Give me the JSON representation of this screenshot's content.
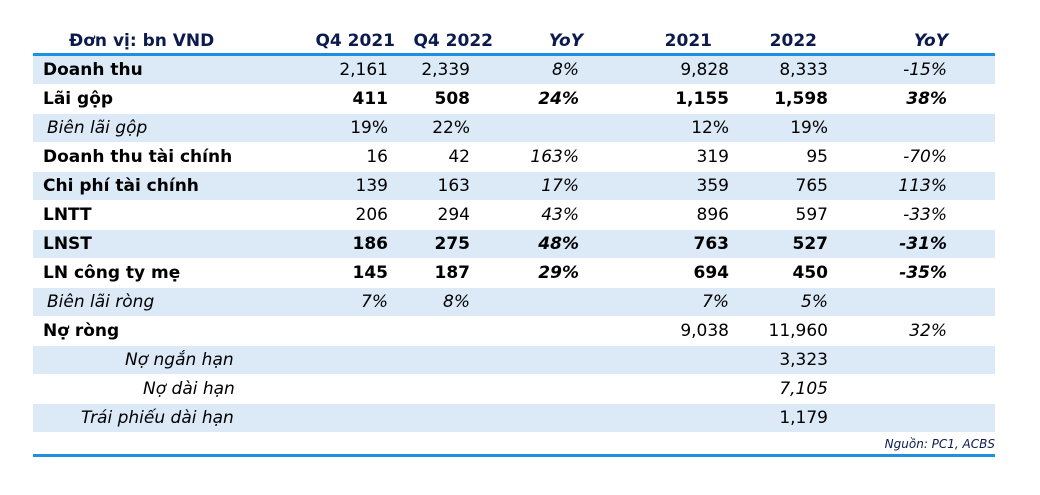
{
  "header": [
    "Đơn vị: bn VND",
    "Q4 2021",
    "Q4 2022",
    "YoY",
    "2021",
    "2022",
    "YoY"
  ],
  "rows": [
    {
      "label": "Doanh thu",
      "cells": [
        "2,161",
        "2,339",
        "8%",
        "9,828",
        "8,333",
        "-15%"
      ]
    },
    {
      "label": "Lãi gộp",
      "cells": [
        "411",
        "508",
        "24%",
        "1,155",
        "1,598",
        "38%"
      ]
    },
    {
      "label": "Biên lãi gộp",
      "cells": [
        "19%",
        "22%",
        "",
        "12%",
        "19%",
        ""
      ]
    },
    {
      "label": "Doanh thu tài chính",
      "cells": [
        "16",
        "42",
        "163%",
        "319",
        "95",
        "-70%"
      ]
    },
    {
      "label": "Chi phí tài chính",
      "cells": [
        "139",
        "163",
        "17%",
        "359",
        "765",
        "113%"
      ]
    },
    {
      "label": "LNTT",
      "cells": [
        "206",
        "294",
        "43%",
        "896",
        "597",
        "-33%"
      ]
    },
    {
      "label": "LNST",
      "cells": [
        "186",
        "275",
        "48%",
        "763",
        "527",
        "-31%"
      ]
    },
    {
      "label": "LN công ty mẹ",
      "cells": [
        "145",
        "187",
        "29%",
        "694",
        "450",
        "-35%"
      ]
    },
    {
      "label": "Biên lãi ròng",
      "cells": [
        "7%",
        "8%",
        "",
        "7%",
        "5%",
        ""
      ]
    },
    {
      "label": "Nợ ròng",
      "cells": [
        "",
        "",
        "",
        "9,038",
        "11,960",
        "32%"
      ]
    },
    {
      "label": "Nợ ngắn hạn",
      "cells": [
        "",
        "",
        "",
        "",
        "3,323",
        ""
      ]
    },
    {
      "label": "Nợ dài hạn",
      "cells": [
        "",
        "",
        "",
        "",
        "7,105",
        ""
      ]
    },
    {
      "label": "Trái phiếu dài hạn",
      "cells": [
        "",
        "",
        "",
        "",
        "1,179",
        ""
      ]
    }
  ],
  "source": "Nguồn: PC1, ACBS",
  "colors": {
    "rule": "#1f8fe0",
    "shade": "#dce9f7",
    "header_text": "#0c1b4d"
  }
}
